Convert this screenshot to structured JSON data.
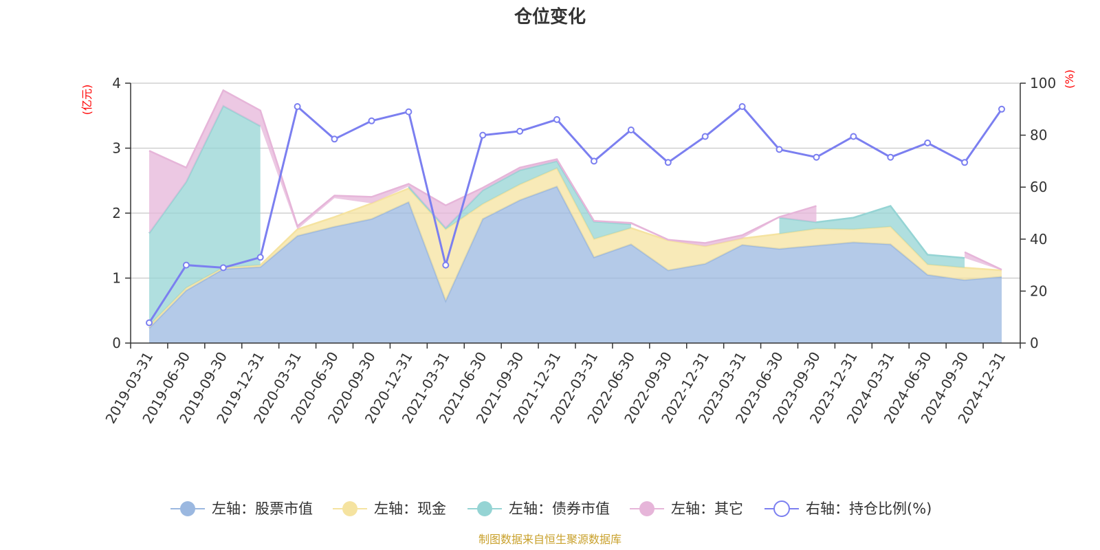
{
  "chart_data": {
    "type": "area",
    "title": "仓位变化",
    "left_axis_unit": "(亿元)",
    "right_axis_unit": "(%)",
    "source_note": "制图数据来自恒生聚源数据库",
    "categories": [
      "2019-03-31",
      "2019-06-30",
      "2019-09-30",
      "2019-12-31",
      "2020-03-31",
      "2020-06-30",
      "2020-09-30",
      "2020-12-31",
      "2021-03-31",
      "2021-06-30",
      "2021-09-30",
      "2021-12-31",
      "2022-03-31",
      "2022-06-30",
      "2022-09-30",
      "2022-12-31",
      "2023-03-31",
      "2023-06-30",
      "2023-09-30",
      "2023-12-31",
      "2024-03-31",
      "2024-06-30",
      "2024-09-30",
      "2024-12-31"
    ],
    "y_left": {
      "min": 0,
      "max": 4,
      "ticks": [
        "0",
        "1",
        "2",
        "3",
        "4"
      ]
    },
    "y_right": {
      "min": 0,
      "max": 100,
      "ticks": [
        "0",
        "20",
        "40",
        "60",
        "80",
        "100"
      ]
    },
    "grid": true,
    "legend_position": "bottom",
    "series": [
      {
        "name": "左轴：股票市值",
        "axis": "left",
        "kind": "stacked-area",
        "color": "#9bb8e0",
        "values": [
          0.23,
          0.81,
          1.14,
          1.17,
          1.65,
          1.79,
          1.91,
          2.17,
          0.65,
          1.91,
          2.2,
          2.41,
          1.32,
          1.52,
          1.12,
          1.22,
          1.51,
          1.45,
          1.5,
          1.55,
          1.52,
          1.05,
          0.97,
          1.02
        ]
      },
      {
        "name": "左轴：现金",
        "axis": "left",
        "kind": "stacked-area",
        "color": "#f5e3a0",
        "values": [
          0.04,
          0.04,
          0.02,
          0.03,
          0.1,
          0.15,
          0.24,
          0.21,
          1.1,
          0.23,
          0.24,
          0.28,
          0.28,
          0.25,
          0.46,
          0.27,
          0.1,
          0.23,
          0.26,
          0.2,
          0.27,
          0.16,
          0.19,
          0.1
        ]
      },
      {
        "name": "左轴：债券市值",
        "axis": "left",
        "kind": "stacked-area",
        "color": "#95d4d4",
        "values": [
          1.42,
          1.63,
          2.49,
          2.14,
          0,
          0.29,
          0,
          0.03,
          0.02,
          0.21,
          0.22,
          0.11,
          0.27,
          0.06,
          0,
          0,
          0,
          0.25,
          0.1,
          0.18,
          0.32,
          0.15,
          0.15,
          0
        ]
      },
      {
        "name": "左轴：其它",
        "axis": "left",
        "kind": "stacked-area",
        "color": "#e6b5d9",
        "values": [
          1.27,
          0.22,
          0.24,
          0.24,
          0.05,
          0.04,
          0.1,
          0.04,
          0.35,
          0.04,
          0.04,
          0.03,
          0.01,
          0.02,
          0.01,
          0.05,
          0.05,
          0.01,
          0.25,
          0,
          0.02,
          0,
          0.09,
          0.01
        ]
      },
      {
        "name": "右轴：持仓比例(%)",
        "axis": "right",
        "kind": "line",
        "color": "#7b7ff0",
        "values": [
          7.8,
          30.0,
          29.0,
          33.0,
          91.0,
          78.5,
          85.5,
          89.0,
          30.0,
          80.0,
          81.5,
          86.0,
          70.0,
          82.0,
          69.5,
          79.5,
          91.0,
          74.5,
          71.5,
          79.5,
          71.5,
          77.0,
          69.5,
          90.0
        ]
      }
    ]
  }
}
